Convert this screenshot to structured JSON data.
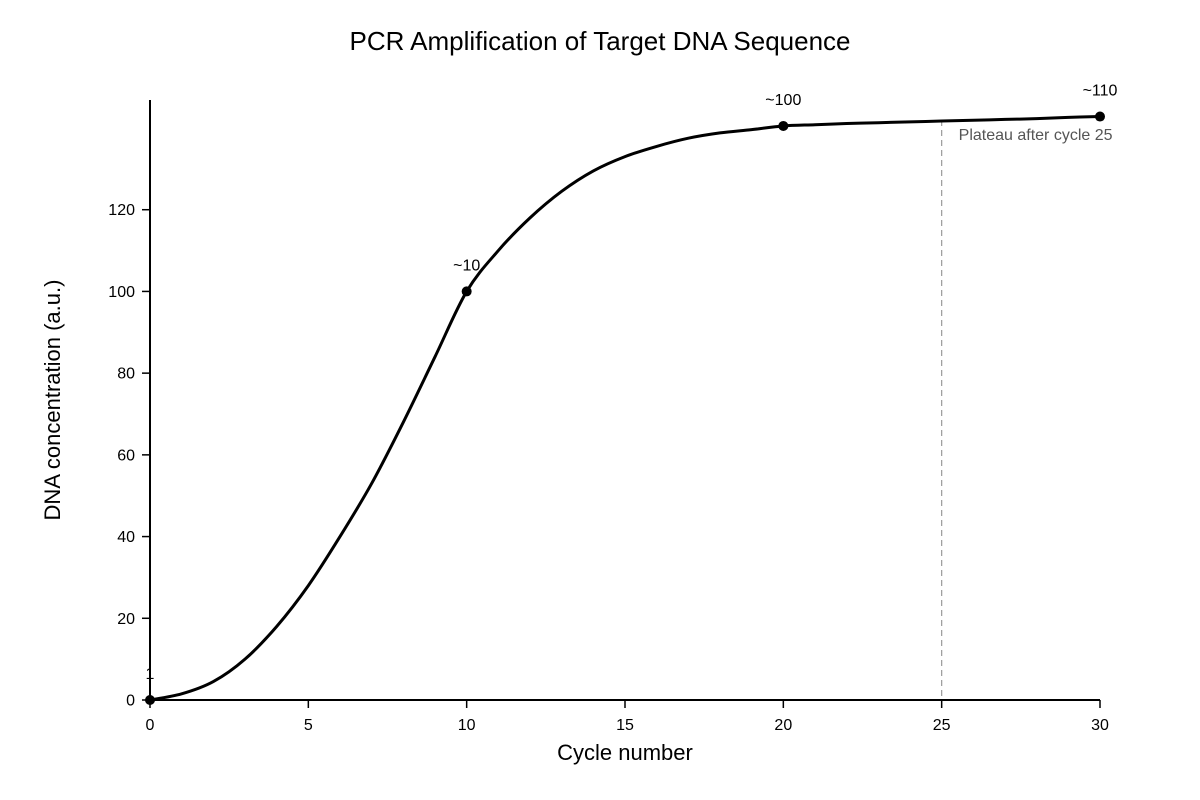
{
  "chart_data": {
    "type": "line",
    "title": "PCR Amplification of Target DNA Sequence",
    "xlabel": "Cycle number",
    "ylabel": "DNA concentration (a.u.)",
    "xlim": [
      0,
      30
    ],
    "ylim": [
      0,
      140
    ],
    "x_ticks": [
      0,
      5,
      10,
      15,
      20,
      25,
      30
    ],
    "y_ticks": [
      0,
      20,
      40,
      60,
      80,
      100,
      120
    ],
    "grid": false,
    "series": [
      {
        "x": [
          0,
          1,
          2,
          3,
          4,
          5,
          6,
          7,
          8,
          9,
          10,
          11,
          12,
          13,
          14,
          15,
          16,
          17,
          18,
          19,
          20,
          21,
          22,
          23,
          24,
          25,
          26,
          27,
          28,
          29,
          30
        ],
        "y": [
          0,
          1.5,
          4.5,
          10,
          18,
          28,
          40,
          53,
          68,
          84,
          100,
          110,
          118,
          124.5,
          129.5,
          133,
          135.5,
          137.5,
          138.8,
          139.6,
          140.5,
          140.8,
          141.1,
          141.3,
          141.5,
          141.7,
          141.9,
          142.1,
          142.3,
          142.6,
          142.8
        ]
      }
    ],
    "markers": [
      {
        "x": 0,
        "y": 0,
        "label": "1"
      },
      {
        "x": 10,
        "y": 100,
        "label": "~10"
      },
      {
        "x": 20,
        "y": 140.5,
        "label": "~100"
      },
      {
        "x": 30,
        "y": 142.8,
        "label": "~110"
      }
    ],
    "plateau": {
      "x": 25,
      "label": "Plateau after cycle 25"
    }
  }
}
